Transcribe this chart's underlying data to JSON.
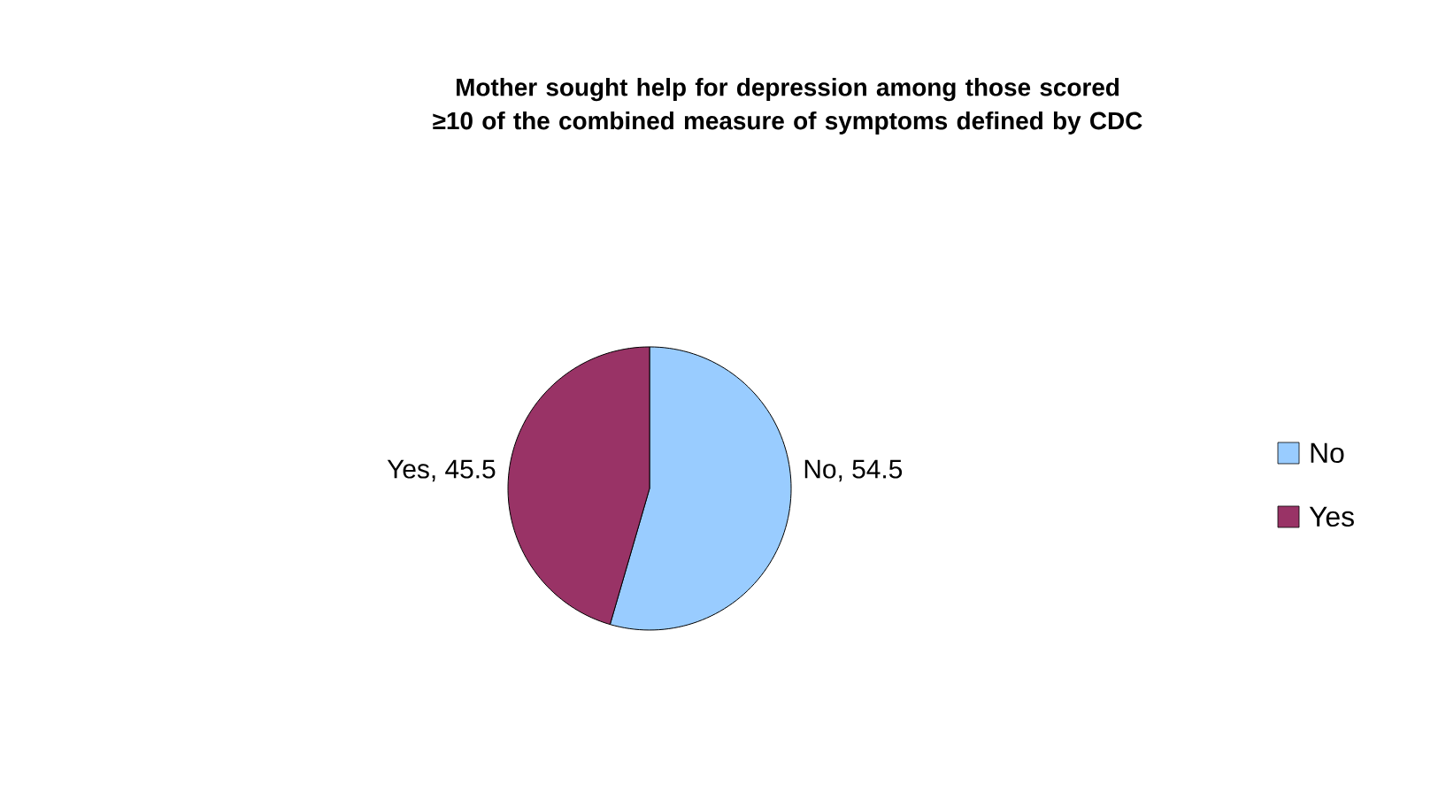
{
  "chart_data": {
    "type": "pie",
    "title": "Mother sought help for depression among those scored ≥10 of the combined measure of symptoms defined by CDC",
    "categories": [
      "No",
      "Yes"
    ],
    "values": [
      54.5,
      45.5
    ],
    "value_labels": [
      "No, 54.5",
      "Yes, 45.5"
    ],
    "colors": [
      "#99ccff",
      "#993366"
    ],
    "legend": "right"
  }
}
